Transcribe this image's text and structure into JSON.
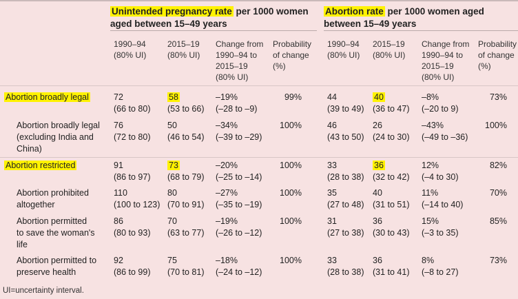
{
  "groups": [
    {
      "title_highlight": "Unintended pregnancy rate",
      "title_rest": " per 1000 women aged between 15–49 years"
    },
    {
      "title_highlight": "Abortion rate",
      "title_rest": " per 1000 women aged between 15–49 years"
    }
  ],
  "columns": [
    "1990–94\n(80% UI)",
    "2015–19\n(80% UI)",
    "Change from\n1990–94 to\n2015–19\n(80% UI)",
    "Probability\nof change\n(%)",
    "1990–94\n(80% UI)",
    "2015–19\n(80% UI)",
    "Change from\n1990–94 to\n2015–19\n(80% UI)",
    "Probability\nof change\n(%)"
  ],
  "rows": [
    {
      "label": "Abortion broadly legal",
      "highlight": true,
      "cells": [
        "72\n(66 to 80)",
        "58\n(53 to 66)",
        "–19%\n(–28 to –9)",
        "99%",
        "44\n(39 to 49)",
        "40\n(36 to 47)",
        "–8%\n(–20 to 9)",
        "73%"
      ]
    },
    {
      "label": "Abortion broadly legal\n(excluding India and\nChina)",
      "highlight": false,
      "cells": [
        "76\n(72 to 80)",
        "50\n(46 to 54)",
        "–34%\n(–39 to –29)",
        "100%",
        "46\n(43 to 50)",
        "26\n(24 to 30)",
        "–43%\n(–49 to –36)",
        "100%"
      ]
    },
    {
      "label": "Abortion restricted",
      "highlight": true,
      "cells": [
        "91\n(86 to 97)",
        "73\n(68 to 79)",
        "–20%\n(–25 to –14)",
        "100%",
        "33\n(28 to 38)",
        "36\n(32 to 42)",
        "12%\n(–4 to 30)",
        "82%"
      ]
    },
    {
      "label": "Abortion prohibited\naltogether",
      "highlight": false,
      "cells": [
        "110\n(100 to 123)",
        "80\n(70 to 91)",
        "–27%\n(–35 to –19)",
        "100%",
        "35\n(27 to 48)",
        "40\n(31 to 51)",
        "11%\n(–14 to 40)",
        "70%"
      ]
    },
    {
      "label": "Abortion permitted\nto save the woman's\nlife",
      "highlight": false,
      "cells": [
        "86\n(80 to 93)",
        "70\n(63 to 77)",
        "–19%\n(–26 to –12)",
        "100%",
        "31\n(27 to 38)",
        "36\n(30 to 43)",
        "15%\n(–3 to 35)",
        "85%"
      ]
    },
    {
      "label": "Abortion permitted to\npreserve health",
      "highlight": false,
      "cells": [
        "92\n(86 to 99)",
        "75\n(70 to 81)",
        "–18%\n(–24 to –12)",
        "100%",
        "33\n(28 to 38)",
        "36\n(31 to 41)",
        "8%\n(–8 to 27)",
        "73%"
      ]
    }
  ],
  "highlighted_values": [
    "58",
    "40",
    "73",
    "36"
  ],
  "footnote": "UI=uncertainty interval.",
  "colors": {
    "background": "#f7e2e2",
    "highlight": "#fff200"
  }
}
